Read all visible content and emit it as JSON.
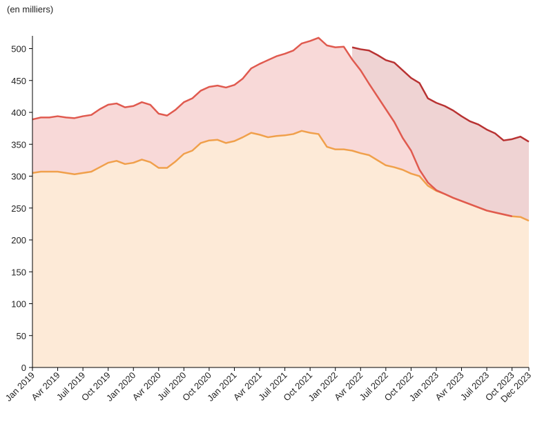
{
  "chart_data": {
    "type": "area_line",
    "subtitle": "(en milliers)",
    "categories": [
      "Jan 2019",
      null,
      null,
      "Avr 2019",
      null,
      null,
      "Juil 2019",
      null,
      null,
      "Oct 2019",
      null,
      null,
      "Jan 2020",
      null,
      null,
      "Avr 2020",
      null,
      null,
      "Juil 2020",
      null,
      null,
      "Oct 2020",
      null,
      null,
      "Jan 2021",
      null,
      null,
      "Avr 2021",
      null,
      null,
      "Juil 2021",
      null,
      null,
      "Oct 2021",
      null,
      null,
      "Jan 2022",
      null,
      null,
      "Avr 2022",
      null,
      null,
      "Juil 2022",
      null,
      null,
      "Oct 2022",
      null,
      null,
      "Jan 2023",
      null,
      null,
      "Avr 2023",
      null,
      null,
      "Juil 2023",
      null,
      null,
      "Oct 2023",
      null,
      "Dec 2023"
    ],
    "series": [
      {
        "color": "#f0a04b",
        "fill": "#fdead7",
        "values": [
          305,
          307,
          307,
          307,
          305,
          303,
          305,
          307,
          314,
          321,
          324,
          319,
          321,
          326,
          322,
          313,
          313,
          323,
          335,
          340,
          352,
          356,
          357,
          352,
          355,
          361,
          368,
          365,
          361,
          363,
          364,
          366,
          371,
          368,
          366,
          346,
          342,
          342,
          340,
          336,
          333,
          325,
          317,
          314,
          310,
          304,
          300,
          285,
          277,
          272,
          266,
          261,
          256,
          251,
          246,
          243,
          240,
          237,
          236,
          230
        ]
      },
      {
        "color": "#e05a4f",
        "fill": "#f8d9d8",
        "values": [
          389,
          392,
          392,
          394,
          392,
          391,
          394,
          396,
          405,
          412,
          414,
          408,
          410,
          416,
          412,
          398,
          395,
          404,
          416,
          422,
          434,
          440,
          442,
          439,
          443,
          453,
          469,
          476,
          482,
          488,
          492,
          497,
          508,
          512,
          517,
          505,
          502,
          503,
          483,
          466,
          445,
          425,
          405,
          385,
          360,
          340,
          310,
          290,
          278,
          272,
          266,
          261,
          256,
          251,
          246,
          243,
          240,
          237,
          null,
          null
        ]
      },
      {
        "color": "#b83232",
        "fill": "#efd3d3",
        "values": [
          null,
          null,
          null,
          null,
          null,
          null,
          null,
          null,
          null,
          null,
          null,
          null,
          null,
          null,
          null,
          null,
          null,
          null,
          null,
          null,
          null,
          null,
          null,
          null,
          null,
          null,
          null,
          null,
          null,
          null,
          null,
          null,
          null,
          null,
          null,
          null,
          null,
          null,
          502,
          499,
          497,
          490,
          482,
          478,
          466,
          454,
          446,
          422,
          415,
          410,
          403,
          394,
          386,
          381,
          373,
          367,
          356,
          358,
          362,
          354
        ]
      }
    ],
    "ylim": [
      0,
      520
    ],
    "yticks": [
      0,
      50,
      100,
      150,
      200,
      250,
      300,
      350,
      400,
      450,
      500
    ]
  }
}
